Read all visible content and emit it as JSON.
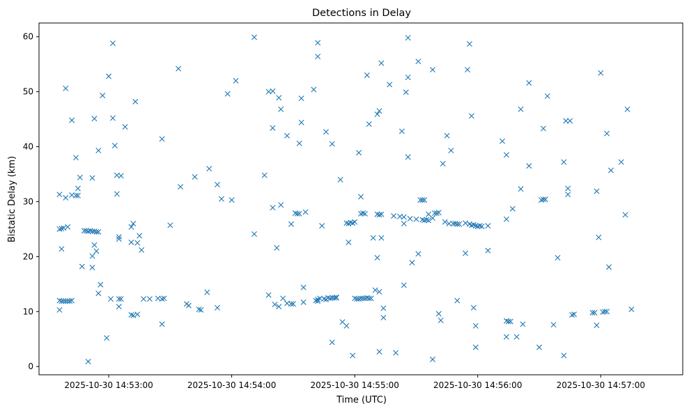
{
  "chart_data": {
    "type": "scatter",
    "title": "Detections in Delay",
    "xlabel": "Time (UTC)",
    "ylabel": "Bistatic Delay (km)",
    "marker": "x",
    "color": "#1f77b4",
    "grid": false,
    "x_unit": "datetime",
    "xlim": [
      "2025-10-30T14:52:26",
      "2025-10-30T14:57:40"
    ],
    "ylim": [
      -1.5,
      62.5
    ],
    "x_ticks": [
      "2025-10-30T14:53:00",
      "2025-10-30T14:54:00",
      "2025-10-30T14:55:00",
      "2025-10-30T14:56:00",
      "2025-10-30T14:57:00"
    ],
    "x_tick_labels": [
      "2025-10-30 14:53:00",
      "2025-10-30 14:54:00",
      "2025-10-30 14:55:00",
      "2025-10-30 14:56:00",
      "2025-10-30 14:57:00"
    ],
    "y_ticks": [
      0,
      10,
      20,
      30,
      40,
      50,
      60
    ],
    "y_tick_labels": [
      "0",
      "10",
      "20",
      "30",
      "40",
      "50",
      "60"
    ],
    "points": [
      [
        "2025-10-30T14:52:36",
        31.3
      ],
      [
        "2025-10-30T14:52:36",
        25.0
      ],
      [
        "2025-10-30T14:52:37",
        25.1
      ],
      [
        "2025-10-30T14:52:38",
        25.2
      ],
      [
        "2025-10-30T14:52:40",
        25.4
      ],
      [
        "2025-10-30T14:52:37",
        21.4
      ],
      [
        "2025-10-30T14:52:36",
        12.0
      ],
      [
        "2025-10-30T14:52:36",
        10.3
      ],
      [
        "2025-10-30T14:52:37",
        11.9
      ],
      [
        "2025-10-30T14:52:38",
        11.9
      ],
      [
        "2025-10-30T14:52:39",
        11.9
      ],
      [
        "2025-10-30T14:52:40",
        11.9
      ],
      [
        "2025-10-30T14:52:41",
        11.9
      ],
      [
        "2025-10-30T14:52:42",
        12.0
      ],
      [
        "2025-10-30T14:52:39",
        50.6
      ],
      [
        "2025-10-30T14:52:39",
        30.7
      ],
      [
        "2025-10-30T14:52:42",
        31.2
      ],
      [
        "2025-10-30T14:52:42",
        44.8
      ],
      [
        "2025-10-30T14:52:44",
        38.0
      ],
      [
        "2025-10-30T14:52:44",
        31.1
      ],
      [
        "2025-10-30T14:52:45",
        31.1
      ],
      [
        "2025-10-30T14:52:45",
        32.4
      ],
      [
        "2025-10-30T14:52:46",
        34.4
      ],
      [
        "2025-10-30T14:52:47",
        18.2
      ],
      [
        "2025-10-30T14:52:48",
        24.7
      ],
      [
        "2025-10-30T14:52:49",
        24.7
      ],
      [
        "2025-10-30T14:52:50",
        24.6
      ],
      [
        "2025-10-30T14:52:51",
        24.7
      ],
      [
        "2025-10-30T14:52:52",
        24.6
      ],
      [
        "2025-10-30T14:52:53",
        24.6
      ],
      [
        "2025-10-30T14:52:54",
        24.5
      ],
      [
        "2025-10-30T14:52:55",
        24.5
      ],
      [
        "2025-10-30T14:52:50",
        0.9
      ],
      [
        "2025-10-30T14:52:52",
        34.3
      ],
      [
        "2025-10-30T14:52:52",
        20.1
      ],
      [
        "2025-10-30T14:52:53",
        22.1
      ],
      [
        "2025-10-30T14:52:52",
        18.0
      ],
      [
        "2025-10-30T14:52:53",
        45.1
      ],
      [
        "2025-10-30T14:52:54",
        21.0
      ],
      [
        "2025-10-30T14:52:55",
        39.3
      ],
      [
        "2025-10-30T14:52:55",
        13.3
      ],
      [
        "2025-10-30T14:52:56",
        14.9
      ],
      [
        "2025-10-30T14:52:57",
        49.3
      ],
      [
        "2025-10-30T14:52:59",
        5.2
      ],
      [
        "2025-10-30T14:53:00",
        52.8
      ],
      [
        "2025-10-30T14:53:01",
        12.3
      ],
      [
        "2025-10-30T14:53:02",
        58.8
      ],
      [
        "2025-10-30T14:53:02",
        45.2
      ],
      [
        "2025-10-30T14:53:03",
        40.2
      ],
      [
        "2025-10-30T14:53:04",
        31.4
      ],
      [
        "2025-10-30T14:53:04",
        34.8
      ],
      [
        "2025-10-30T14:53:05",
        23.6
      ],
      [
        "2025-10-30T14:53:05",
        23.2
      ],
      [
        "2025-10-30T14:53:05",
        12.3
      ],
      [
        "2025-10-30T14:53:05",
        10.9
      ],
      [
        "2025-10-30T14:53:06",
        34.7
      ],
      [
        "2025-10-30T14:53:06",
        12.3
      ],
      [
        "2025-10-30T14:53:08",
        43.6
      ],
      [
        "2025-10-30T14:53:11",
        25.4
      ],
      [
        "2025-10-30T14:53:11",
        22.6
      ],
      [
        "2025-10-30T14:53:12",
        26.0
      ],
      [
        "2025-10-30T14:53:11",
        9.4
      ],
      [
        "2025-10-30T14:53:12",
        9.3
      ],
      [
        "2025-10-30T14:53:13",
        48.2
      ],
      [
        "2025-10-30T14:53:14",
        9.5
      ],
      [
        "2025-10-30T14:53:14",
        22.5
      ],
      [
        "2025-10-30T14:53:15",
        23.8
      ],
      [
        "2025-10-30T14:53:16",
        21.2
      ],
      [
        "2025-10-30T14:53:17",
        12.3
      ],
      [
        "2025-10-30T14:53:20",
        12.3
      ],
      [
        "2025-10-30T14:53:24",
        12.4
      ],
      [
        "2025-10-30T14:53:26",
        12.3
      ],
      [
        "2025-10-30T14:53:26",
        41.4
      ],
      [
        "2025-10-30T14:53:27",
        12.4
      ],
      [
        "2025-10-30T14:53:26",
        7.7
      ],
      [
        "2025-10-30T14:53:30",
        25.7
      ],
      [
        "2025-10-30T14:53:34",
        54.2
      ],
      [
        "2025-10-30T14:53:35",
        32.7
      ],
      [
        "2025-10-30T14:53:38",
        11.4
      ],
      [
        "2025-10-30T14:53:39",
        11.1
      ],
      [
        "2025-10-30T14:53:42",
        34.5
      ],
      [
        "2025-10-30T14:53:44",
        10.4
      ],
      [
        "2025-10-30T14:53:45",
        10.3
      ],
      [
        "2025-10-30T14:53:48",
        13.5
      ],
      [
        "2025-10-30T14:53:49",
        36.0
      ],
      [
        "2025-10-30T14:53:53",
        33.1
      ],
      [
        "2025-10-30T14:53:53",
        10.7
      ],
      [
        "2025-10-30T14:53:55",
        30.5
      ],
      [
        "2025-10-30T14:53:58",
        49.6
      ],
      [
        "2025-10-30T14:54:00",
        30.3
      ],
      [
        "2025-10-30T14:54:02",
        52.0
      ],
      [
        "2025-10-30T14:54:11",
        59.9
      ],
      [
        "2025-10-30T14:54:11",
        24.1
      ],
      [
        "2025-10-30T14:54:16",
        34.8
      ],
      [
        "2025-10-30T14:54:18",
        50.0
      ],
      [
        "2025-10-30T14:54:20",
        50.1
      ],
      [
        "2025-10-30T14:54:20",
        43.4
      ],
      [
        "2025-10-30T14:54:20",
        28.9
      ],
      [
        "2025-10-30T14:54:18",
        13.0
      ],
      [
        "2025-10-30T14:54:21",
        11.3
      ],
      [
        "2025-10-30T14:54:22",
        21.6
      ],
      [
        "2025-10-30T14:54:23",
        48.9
      ],
      [
        "2025-10-30T14:54:23",
        10.9
      ],
      [
        "2025-10-30T14:54:24",
        46.8
      ],
      [
        "2025-10-30T14:54:24",
        29.4
      ],
      [
        "2025-10-30T14:54:25",
        12.4
      ],
      [
        "2025-10-30T14:54:27",
        42.0
      ],
      [
        "2025-10-30T14:54:27",
        11.5
      ],
      [
        "2025-10-30T14:54:29",
        11.4
      ],
      [
        "2025-10-30T14:54:30",
        11.4
      ],
      [
        "2025-10-30T14:54:29",
        25.9
      ],
      [
        "2025-10-30T14:54:31",
        27.9
      ],
      [
        "2025-10-30T14:54:32",
        27.8
      ],
      [
        "2025-10-30T14:54:33",
        27.8
      ],
      [
        "2025-10-30T14:54:33",
        40.6
      ],
      [
        "2025-10-30T14:54:34",
        44.4
      ],
      [
        "2025-10-30T14:54:34",
        48.8
      ],
      [
        "2025-10-30T14:54:35",
        14.4
      ],
      [
        "2025-10-30T14:54:35",
        11.7
      ],
      [
        "2025-10-30T14:54:36",
        28.1
      ],
      [
        "2025-10-30T14:54:40",
        50.4
      ],
      [
        "2025-10-30T14:54:41",
        12.0
      ],
      [
        "2025-10-30T14:54:42",
        11.9
      ],
      [
        "2025-10-30T14:54:42",
        12.2
      ],
      [
        "2025-10-30T14:54:42",
        58.9
      ],
      [
        "2025-10-30T14:54:42",
        56.4
      ],
      [
        "2025-10-30T14:54:43",
        12.4
      ],
      [
        "2025-10-30T14:54:44",
        25.6
      ],
      [
        "2025-10-30T14:54:45",
        12.3
      ],
      [
        "2025-10-30T14:54:46",
        12.2
      ],
      [
        "2025-10-30T14:54:46",
        42.7
      ],
      [
        "2025-10-30T14:54:47",
        12.5
      ],
      [
        "2025-10-30T14:54:48",
        12.4
      ],
      [
        "2025-10-30T14:54:49",
        12.5
      ],
      [
        "2025-10-30T14:54:49",
        40.5
      ],
      [
        "2025-10-30T14:54:50",
        12.5
      ],
      [
        "2025-10-30T14:54:51",
        12.5
      ],
      [
        "2025-10-30T14:54:51",
        12.6
      ],
      [
        "2025-10-30T14:54:49",
        4.4
      ],
      [
        "2025-10-30T14:54:53",
        34.0
      ],
      [
        "2025-10-30T14:54:54",
        8.1
      ],
      [
        "2025-10-30T14:54:56",
        7.4
      ],
      [
        "2025-10-30T14:54:56",
        26.1
      ],
      [
        "2025-10-30T14:54:57",
        22.6
      ],
      [
        "2025-10-30T14:54:57",
        26.0
      ],
      [
        "2025-10-30T14:54:58",
        26.2
      ],
      [
        "2025-10-30T14:54:59",
        26.1
      ],
      [
        "2025-10-30T14:54:59",
        2.0
      ],
      [
        "2025-10-30T14:55:00",
        26.3
      ],
      [
        "2025-10-30T14:55:00",
        12.4
      ],
      [
        "2025-10-30T14:55:01",
        12.3
      ],
      [
        "2025-10-30T14:55:02",
        38.9
      ],
      [
        "2025-10-30T14:55:02",
        12.3
      ],
      [
        "2025-10-30T14:55:03",
        12.4
      ],
      [
        "2025-10-30T14:55:03",
        27.8
      ],
      [
        "2025-10-30T14:55:03",
        30.9
      ],
      [
        "2025-10-30T14:55:04",
        27.9
      ],
      [
        "2025-10-30T14:55:04",
        12.4
      ],
      [
        "2025-10-30T14:55:05",
        12.4
      ],
      [
        "2025-10-30T14:55:05",
        27.8
      ],
      [
        "2025-10-30T14:55:06",
        12.5
      ],
      [
        "2025-10-30T14:55:06",
        53.0
      ],
      [
        "2025-10-30T14:55:07",
        44.1
      ],
      [
        "2025-10-30T14:55:07",
        12.4
      ],
      [
        "2025-10-30T14:55:08",
        12.4
      ],
      [
        "2025-10-30T14:55:09",
        23.4
      ],
      [
        "2025-10-30T14:55:10",
        13.9
      ],
      [
        "2025-10-30T14:55:11",
        45.9
      ],
      [
        "2025-10-30T14:55:11",
        27.7
      ],
      [
        "2025-10-30T14:55:11",
        19.8
      ],
      [
        "2025-10-30T14:55:12",
        46.5
      ],
      [
        "2025-10-30T14:55:12",
        27.6
      ],
      [
        "2025-10-30T14:55:12",
        13.6
      ],
      [
        "2025-10-30T14:55:12",
        2.7
      ],
      [
        "2025-10-30T14:55:13",
        27.7
      ],
      [
        "2025-10-30T14:55:13",
        55.2
      ],
      [
        "2025-10-30T14:55:13",
        23.4
      ],
      [
        "2025-10-30T14:55:14",
        10.6
      ],
      [
        "2025-10-30T14:55:14",
        8.9
      ],
      [
        "2025-10-30T14:55:17",
        51.3
      ],
      [
        "2025-10-30T14:55:19",
        27.4
      ],
      [
        "2025-10-30T14:55:20",
        2.5
      ],
      [
        "2025-10-30T14:55:22",
        27.3
      ],
      [
        "2025-10-30T14:55:23",
        42.8
      ],
      [
        "2025-10-30T14:55:24",
        27.2
      ],
      [
        "2025-10-30T14:55:24",
        26.0
      ],
      [
        "2025-10-30T14:55:24",
        14.8
      ],
      [
        "2025-10-30T14:55:25",
        49.9
      ],
      [
        "2025-10-30T14:55:26",
        52.6
      ],
      [
        "2025-10-30T14:55:26",
        59.8
      ],
      [
        "2025-10-30T14:55:26",
        38.1
      ],
      [
        "2025-10-30T14:55:27",
        26.9
      ],
      [
        "2025-10-30T14:55:28",
        18.9
      ],
      [
        "2025-10-30T14:55:30",
        26.8
      ],
      [
        "2025-10-30T14:55:31",
        55.5
      ],
      [
        "2025-10-30T14:55:31",
        20.5
      ],
      [
        "2025-10-30T14:55:32",
        30.3
      ],
      [
        "2025-10-30T14:55:33",
        30.3
      ],
      [
        "2025-10-30T14:55:33",
        26.7
      ],
      [
        "2025-10-30T14:55:34",
        30.3
      ],
      [
        "2025-10-30T14:55:34",
        26.6
      ],
      [
        "2025-10-30T14:55:35",
        26.7
      ],
      [
        "2025-10-30T14:55:36",
        26.6
      ],
      [
        "2025-10-30T14:55:36",
        27.7
      ],
      [
        "2025-10-30T14:55:38",
        27.0
      ],
      [
        "2025-10-30T14:55:38",
        54.0
      ],
      [
        "2025-10-30T14:55:38",
        1.3
      ],
      [
        "2025-10-30T14:55:39",
        27.9
      ],
      [
        "2025-10-30T14:55:40",
        27.9
      ],
      [
        "2025-10-30T14:55:41",
        28.0
      ],
      [
        "2025-10-30T14:55:41",
        9.6
      ],
      [
        "2025-10-30T14:55:42",
        8.4
      ],
      [
        "2025-10-30T14:55:43",
        36.9
      ],
      [
        "2025-10-30T14:55:44",
        26.3
      ],
      [
        "2025-10-30T14:55:45",
        42.0
      ],
      [
        "2025-10-30T14:55:46",
        26.0
      ],
      [
        "2025-10-30T14:55:47",
        39.3
      ],
      [
        "2025-10-30T14:55:48",
        26.0
      ],
      [
        "2025-10-30T14:55:49",
        26.0
      ],
      [
        "2025-10-30T14:55:50",
        12.0
      ],
      [
        "2025-10-30T14:55:50",
        25.9
      ],
      [
        "2025-10-30T14:55:51",
        25.9
      ],
      [
        "2025-10-30T14:55:54",
        20.6
      ],
      [
        "2025-10-30T14:55:54",
        26.1
      ],
      [
        "2025-10-30T14:55:55",
        54.0
      ],
      [
        "2025-10-30T14:55:56",
        58.7
      ],
      [
        "2025-10-30T14:55:56",
        25.9
      ],
      [
        "2025-10-30T14:55:57",
        25.7
      ],
      [
        "2025-10-30T14:55:57",
        45.6
      ],
      [
        "2025-10-30T14:55:58",
        25.8
      ],
      [
        "2025-10-30T14:55:58",
        10.7
      ],
      [
        "2025-10-30T14:55:59",
        7.4
      ],
      [
        "2025-10-30T14:55:59",
        3.5
      ],
      [
        "2025-10-30T14:55:59",
        25.6
      ],
      [
        "2025-10-30T14:56:00",
        25.5
      ],
      [
        "2025-10-30T14:56:01",
        25.6
      ],
      [
        "2025-10-30T14:56:02",
        25.5
      ],
      [
        "2025-10-30T14:56:05",
        25.6
      ],
      [
        "2025-10-30T14:56:05",
        21.1
      ],
      [
        "2025-10-30T14:56:12",
        41.0
      ],
      [
        "2025-10-30T14:56:14",
        38.5
      ],
      [
        "2025-10-30T14:56:14",
        26.8
      ],
      [
        "2025-10-30T14:56:14",
        5.4
      ],
      [
        "2025-10-30T14:56:14",
        8.3
      ],
      [
        "2025-10-30T14:56:15",
        8.2
      ],
      [
        "2025-10-30T14:56:16",
        8.2
      ],
      [
        "2025-10-30T14:56:17",
        28.7
      ],
      [
        "2025-10-30T14:56:19",
        5.4
      ],
      [
        "2025-10-30T14:56:21",
        46.8
      ],
      [
        "2025-10-30T14:56:21",
        32.3
      ],
      [
        "2025-10-30T14:56:22",
        7.7
      ],
      [
        "2025-10-30T14:56:25",
        51.6
      ],
      [
        "2025-10-30T14:56:25",
        36.5
      ],
      [
        "2025-10-30T14:56:30",
        3.5
      ],
      [
        "2025-10-30T14:56:32",
        43.3
      ],
      [
        "2025-10-30T14:56:31",
        30.3
      ],
      [
        "2025-10-30T14:56:32",
        30.4
      ],
      [
        "2025-10-30T14:56:33",
        30.4
      ],
      [
        "2025-10-30T14:56:34",
        49.2
      ],
      [
        "2025-10-30T14:56:37",
        7.6
      ],
      [
        "2025-10-30T14:56:39",
        19.8
      ],
      [
        "2025-10-30T14:56:42",
        37.2
      ],
      [
        "2025-10-30T14:56:43",
        44.7
      ],
      [
        "2025-10-30T14:56:42",
        2.0
      ],
      [
        "2025-10-30T14:56:45",
        44.7
      ],
      [
        "2025-10-30T14:56:44",
        32.4
      ],
      [
        "2025-10-30T14:56:44",
        31.3
      ],
      [
        "2025-10-30T14:56:46",
        9.4
      ],
      [
        "2025-10-30T14:56:47",
        9.5
      ],
      [
        "2025-10-30T14:56:56",
        9.8
      ],
      [
        "2025-10-30T14:56:57",
        9.8
      ],
      [
        "2025-10-30T14:56:58",
        31.9
      ],
      [
        "2025-10-30T14:56:58",
        7.5
      ],
      [
        "2025-10-30T14:56:59",
        23.5
      ],
      [
        "2025-10-30T14:57:00",
        53.4
      ],
      [
        "2025-10-30T14:57:01",
        9.9
      ],
      [
        "2025-10-30T14:57:02",
        10.0
      ],
      [
        "2025-10-30T14:57:03",
        10.0
      ],
      [
        "2025-10-30T14:57:03",
        42.4
      ],
      [
        "2025-10-30T14:57:04",
        18.1
      ],
      [
        "2025-10-30T14:57:05",
        35.7
      ],
      [
        "2025-10-30T14:57:10",
        37.2
      ],
      [
        "2025-10-30T14:57:12",
        27.6
      ],
      [
        "2025-10-30T14:57:13",
        46.8
      ],
      [
        "2025-10-30T14:57:15",
        10.4
      ]
    ]
  }
}
